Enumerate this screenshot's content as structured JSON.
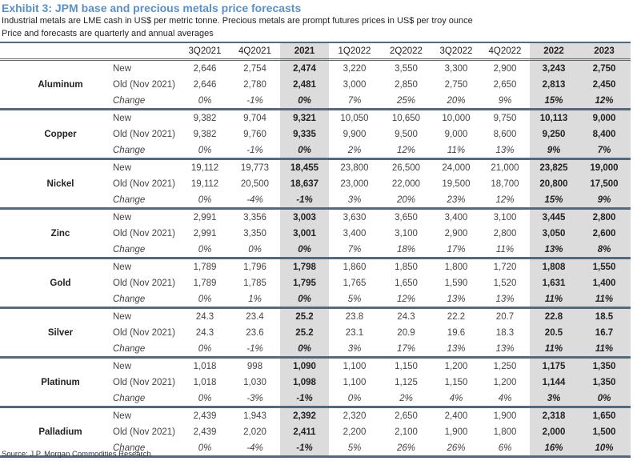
{
  "title": "Exhibit 3: JPM base and precious metals price forecasts",
  "subtitle1": "Industrial metals are LME cash in US$ per metric tonne. Precious metals are prompt futures prices in US$ per troy ounce",
  "subtitle2": "Price and forecasts are quarterly and annual averages",
  "columns": [
    "3Q2021",
    "4Q2021",
    "2021",
    "1Q2022",
    "2Q2022",
    "3Q2022",
    "4Q2022",
    "2022",
    "2023"
  ],
  "row_types": [
    "New",
    "Old (Nov 2021)",
    "Change"
  ],
  "metals": [
    {
      "name": "Aluminum",
      "new": [
        "2,646",
        "2,754",
        "2,474",
        "3,220",
        "3,550",
        "3,300",
        "2,900",
        "3,243",
        "2,750"
      ],
      "old": [
        "2,646",
        "2,780",
        "2,481",
        "3,000",
        "2,850",
        "2,750",
        "2,650",
        "2,813",
        "2,450"
      ],
      "change": [
        "0%",
        "-1%",
        "0%",
        "7%",
        "25%",
        "20%",
        "9%",
        "15%",
        "12%"
      ]
    },
    {
      "name": "Copper",
      "new": [
        "9,382",
        "9,704",
        "9,321",
        "10,050",
        "10,650",
        "10,000",
        "9,750",
        "10,113",
        "9,000"
      ],
      "old": [
        "9,382",
        "9,760",
        "9,335",
        "9,900",
        "9,500",
        "9,000",
        "8,600",
        "9,250",
        "8,400"
      ],
      "change": [
        "0%",
        "-1%",
        "0%",
        "2%",
        "12%",
        "11%",
        "13%",
        "9%",
        "7%"
      ]
    },
    {
      "name": "Nickel",
      "new": [
        "19,112",
        "19,773",
        "18,455",
        "23,800",
        "26,500",
        "24,000",
        "21,000",
        "23,825",
        "19,000"
      ],
      "old": [
        "19,112",
        "20,500",
        "18,637",
        "23,000",
        "22,000",
        "19,500",
        "18,700",
        "20,800",
        "17,500"
      ],
      "change": [
        "0%",
        "-4%",
        "-1%",
        "3%",
        "20%",
        "23%",
        "12%",
        "15%",
        "9%"
      ]
    },
    {
      "name": "Zinc",
      "new": [
        "2,991",
        "3,356",
        "3,003",
        "3,630",
        "3,650",
        "3,400",
        "3,100",
        "3,445",
        "2,800"
      ],
      "old": [
        "2,991",
        "3,350",
        "3,001",
        "3,400",
        "3,100",
        "2,900",
        "2,800",
        "3,050",
        "2,600"
      ],
      "change": [
        "0%",
        "0%",
        "0%",
        "7%",
        "18%",
        "17%",
        "11%",
        "13%",
        "8%"
      ]
    },
    {
      "name": "Gold",
      "new": [
        "1,789",
        "1,796",
        "1,798",
        "1,860",
        "1,850",
        "1,800",
        "1,720",
        "1,808",
        "1,550"
      ],
      "old": [
        "1,789",
        "1,785",
        "1,795",
        "1,765",
        "1,650",
        "1,590",
        "1,520",
        "1,631",
        "1,400"
      ],
      "change": [
        "0%",
        "1%",
        "0%",
        "5%",
        "12%",
        "13%",
        "13%",
        "11%",
        "11%"
      ]
    },
    {
      "name": "Silver",
      "new": [
        "24.3",
        "23.4",
        "25.2",
        "23.8",
        "24.3",
        "22.2",
        "20.7",
        "22.8",
        "18.5"
      ],
      "old": [
        "24.3",
        "23.6",
        "25.2",
        "23.1",
        "20.9",
        "19.6",
        "18.3",
        "20.5",
        "16.7"
      ],
      "change": [
        "0%",
        "-1%",
        "0%",
        "3%",
        "17%",
        "13%",
        "13%",
        "11%",
        "11%"
      ]
    },
    {
      "name": "Platinum",
      "new": [
        "1,018",
        "998",
        "1,090",
        "1,100",
        "1,150",
        "1,200",
        "1,250",
        "1,175",
        "1,350"
      ],
      "old": [
        "1,018",
        "1,030",
        "1,098",
        "1,100",
        "1,125",
        "1,150",
        "1,200",
        "1,144",
        "1,350"
      ],
      "change": [
        "0%",
        "-3%",
        "-1%",
        "0%",
        "2%",
        "4%",
        "4%",
        "3%",
        "0%"
      ]
    },
    {
      "name": "Palladium",
      "new": [
        "2,439",
        "1,943",
        "2,392",
        "2,320",
        "2,650",
        "2,400",
        "1,900",
        "2,318",
        "1,650"
      ],
      "old": [
        "2,439",
        "2,020",
        "2,411",
        "2,200",
        "2,100",
        "1,900",
        "1,800",
        "2,000",
        "1,500"
      ],
      "change": [
        "0%",
        "-4%",
        "-1%",
        "5%",
        "26%",
        "26%",
        "6%",
        "16%",
        "10%"
      ]
    }
  ],
  "source": "Source: J.P. Morgan Commodities Research"
}
